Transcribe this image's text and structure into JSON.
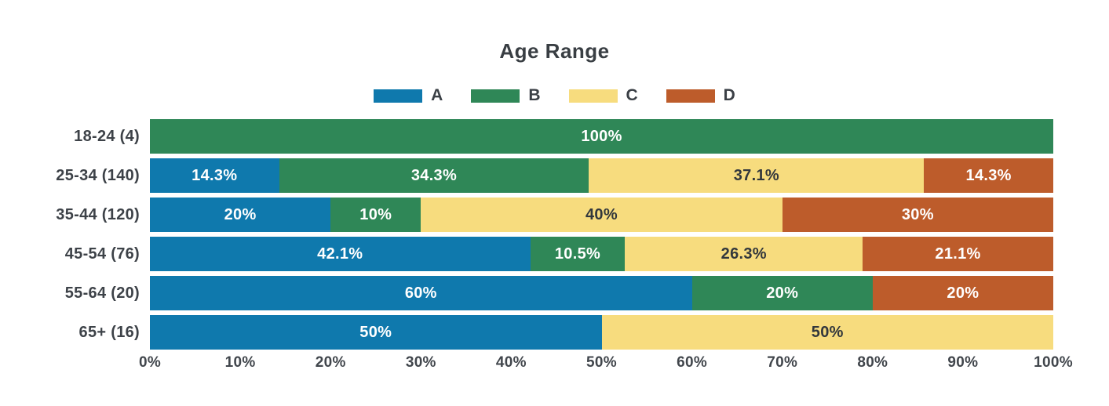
{
  "chart_data": {
    "type": "bar",
    "variant": "horizontal-stacked",
    "title": "Age Range",
    "xlim": [
      0,
      100
    ],
    "grid": false,
    "legend_position": "top-center",
    "x_ticks": [
      "0%",
      "10%",
      "20%",
      "30%",
      "40%",
      "50%",
      "60%",
      "70%",
      "80%",
      "90%",
      "100%"
    ],
    "series": [
      {
        "name": "A",
        "color": "#0f79ad",
        "label_text_color": "#ffffff"
      },
      {
        "name": "B",
        "color": "#2f8757",
        "label_text_color": "#ffffff"
      },
      {
        "name": "C",
        "color": "#f7dc7e",
        "label_text_color": "#32373c"
      },
      {
        "name": "D",
        "color": "#bd5c2b",
        "label_text_color": "#ffffff"
      }
    ],
    "categories": [
      "18-24 (4)",
      "25-34 (140)",
      "35-44 (120)",
      "45-54 (76)",
      "55-64 (20)",
      "65+ (16)"
    ],
    "rows": [
      {
        "category": "18-24 (4)",
        "segments": [
          {
            "series": "B",
            "value": 100,
            "label": "100%"
          }
        ]
      },
      {
        "category": "25-34 (140)",
        "segments": [
          {
            "series": "A",
            "value": 14.3,
            "label": "14.3%"
          },
          {
            "series": "B",
            "value": 34.3,
            "label": "34.3%"
          },
          {
            "series": "C",
            "value": 37.1,
            "label": "37.1%"
          },
          {
            "series": "D",
            "value": 14.3,
            "label": "14.3%"
          }
        ]
      },
      {
        "category": "35-44 (120)",
        "segments": [
          {
            "series": "A",
            "value": 20,
            "label": "20%"
          },
          {
            "series": "B",
            "value": 10,
            "label": "10%"
          },
          {
            "series": "C",
            "value": 40,
            "label": "40%"
          },
          {
            "series": "D",
            "value": 30,
            "label": "30%"
          }
        ]
      },
      {
        "category": "45-54 (76)",
        "segments": [
          {
            "series": "A",
            "value": 42.1,
            "label": "42.1%"
          },
          {
            "series": "B",
            "value": 10.5,
            "label": "10.5%"
          },
          {
            "series": "C",
            "value": 26.3,
            "label": "26.3%"
          },
          {
            "series": "D",
            "value": 21.1,
            "label": "21.1%"
          }
        ]
      },
      {
        "category": "55-64 (20)",
        "segments": [
          {
            "series": "A",
            "value": 60,
            "label": "60%"
          },
          {
            "series": "B",
            "value": 20,
            "label": "20%"
          },
          {
            "series": "D",
            "value": 20,
            "label": "20%"
          }
        ]
      },
      {
        "category": "65+ (16)",
        "segments": [
          {
            "series": "A",
            "value": 50,
            "label": "50%"
          },
          {
            "series": "C",
            "value": 50,
            "label": "50%"
          }
        ]
      }
    ]
  }
}
